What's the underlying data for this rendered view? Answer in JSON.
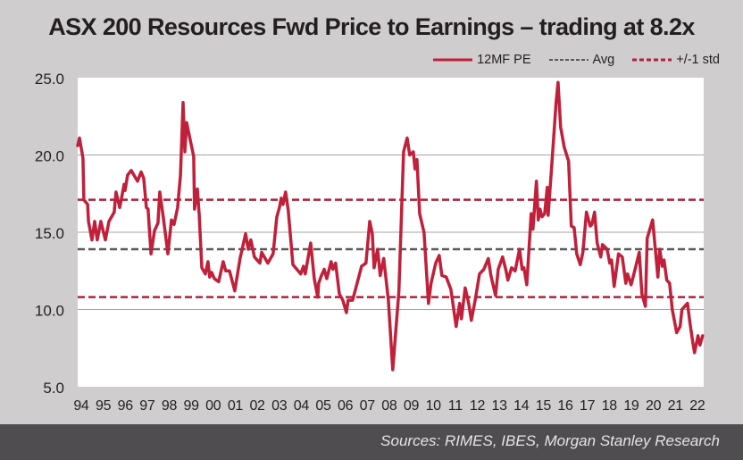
{
  "chart_data": {
    "type": "line",
    "title": "ASX 200 Resources Fwd Price to Earnings – trading at 8.2x",
    "xlabel": "",
    "ylabel": "",
    "xlim": [
      1994.0,
      2022.45
    ],
    "ylim": [
      5,
      25
    ],
    "yticks": [
      5,
      10,
      15,
      20,
      25
    ],
    "ytick_labels": [
      "5.0",
      "10.0",
      "15.0",
      "20.0",
      "25.0"
    ],
    "xtick_labels": [
      "94",
      "95",
      "96",
      "97",
      "98",
      "99",
      "00",
      "01",
      "02",
      "03",
      "04",
      "05",
      "06",
      "07",
      "08",
      "09",
      "10",
      "11",
      "12",
      "13",
      "14",
      "15",
      "16",
      "17",
      "18",
      "19",
      "20",
      "21",
      "22"
    ],
    "grid": "horizontal",
    "legend_position": "top-right",
    "legend": [
      {
        "label": "12MF PE",
        "style": "solid",
        "color": "#c0203a"
      },
      {
        "label": "Avg",
        "style": "dashed",
        "color": "#59595b"
      },
      {
        "label": "+/-1 std",
        "style": "dashed",
        "color": "#b0213a"
      }
    ],
    "reference_lines": {
      "avg": 13.9,
      "upper_std": 17.1,
      "lower_std": 10.8
    },
    "series": [
      {
        "name": "12MF PE",
        "color": "#c0203a",
        "x": [
          1994.0,
          1994.08,
          1994.24,
          1994.28,
          1994.45,
          1994.49,
          1994.65,
          1994.77,
          1994.89,
          1995.05,
          1995.26,
          1995.42,
          1995.66,
          1995.74,
          1995.91,
          1996.11,
          1996.15,
          1996.27,
          1996.43,
          1996.72,
          1996.88,
          1997.0,
          1997.12,
          1997.2,
          1997.33,
          1997.49,
          1997.65,
          1997.73,
          1997.89,
          1998.1,
          1998.26,
          1998.38,
          1998.54,
          1998.67,
          1998.79,
          1998.87,
          1998.95,
          1999.11,
          1999.27,
          1999.31,
          1999.44,
          1999.52,
          1999.64,
          1999.8,
          1999.92,
          2000.0,
          2000.09,
          2000.21,
          2000.41,
          2000.61,
          2000.73,
          2000.9,
          2001.14,
          2001.38,
          2001.63,
          2001.75,
          2001.87,
          2002.03,
          2002.28,
          2002.36,
          2002.64,
          2002.88,
          2003.05,
          2003.17,
          2003.25,
          2003.33,
          2003.45,
          2003.57,
          2003.78,
          2004.14,
          2004.26,
          2004.34,
          2004.59,
          2004.75,
          2004.91,
          2004.95,
          2005.08,
          2005.2,
          2005.32,
          2005.52,
          2005.6,
          2005.72,
          2005.89,
          2006.05,
          2006.21,
          2006.29,
          2006.49,
          2006.7,
          2006.9,
          2007.1,
          2007.27,
          2007.39,
          2007.47,
          2007.63,
          2007.75,
          2007.91,
          2008.12,
          2008.32,
          2008.6,
          2008.81,
          2008.97,
          2009.09,
          2009.25,
          2009.33,
          2009.42,
          2009.54,
          2009.74,
          2009.94,
          2010.06,
          2010.27,
          2010.43,
          2010.55,
          2010.75,
          2010.96,
          2011.2,
          2011.36,
          2011.44,
          2011.61,
          2011.77,
          2011.89,
          2012.09,
          2012.26,
          2012.46,
          2012.66,
          2012.78,
          2012.99,
          2013.11,
          2013.31,
          2013.47,
          2013.55,
          2013.72,
          2013.88,
          2014.08,
          2014.2,
          2014.28,
          2014.41,
          2014.61,
          2014.69,
          2014.85,
          2014.93,
          2015.01,
          2015.1,
          2015.22,
          2015.34,
          2015.38,
          2015.54,
          2015.74,
          2015.83,
          2015.95,
          2016.11,
          2016.31,
          2016.43,
          2016.56,
          2016.68,
          2016.84,
          2016.96,
          2017.12,
          2017.29,
          2017.37,
          2017.49,
          2017.61,
          2017.77,
          2017.85,
          2018.06,
          2018.18,
          2018.26,
          2018.38,
          2018.58,
          2018.75,
          2018.91,
          2018.99,
          2019.15,
          2019.35,
          2019.52,
          2019.64,
          2019.8,
          2019.88,
          2020.13,
          2020.37,
          2020.45,
          2020.57,
          2020.65,
          2020.77,
          2020.9,
          2021.02,
          2021.22,
          2021.38,
          2021.46,
          2021.71,
          2021.83,
          2021.95,
          2022.03,
          2022.19,
          2022.28,
          2022.4
        ],
        "y": [
          20.6,
          21.1,
          19.8,
          17.1,
          16.8,
          15.7,
          14.5,
          15.7,
          14.5,
          15.7,
          14.5,
          15.7,
          16.3,
          17.6,
          16.6,
          18.1,
          17.7,
          18.7,
          19.0,
          18.3,
          18.9,
          18.5,
          16.6,
          16.5,
          13.6,
          15.1,
          15.6,
          17.6,
          16.0,
          13.6,
          15.8,
          15.5,
          16.6,
          18.7,
          23.4,
          20.2,
          22.1,
          21.0,
          19.9,
          16.5,
          17.8,
          16.2,
          12.7,
          12.3,
          13.1,
          12.1,
          12.4,
          12.0,
          11.8,
          13.1,
          12.5,
          12.5,
          11.2,
          13.3,
          14.9,
          13.9,
          14.5,
          13.4,
          13.0,
          13.7,
          13.0,
          13.6,
          16.0,
          16.6,
          17.2,
          16.8,
          17.6,
          16.4,
          12.9,
          12.3,
          12.8,
          12.3,
          14.3,
          12.0,
          10.8,
          11.7,
          12.2,
          12.6,
          12.0,
          13.1,
          12.6,
          13.0,
          11.0,
          10.6,
          9.8,
          10.6,
          10.6,
          11.7,
          12.8,
          13.0,
          15.7,
          14.9,
          12.7,
          13.9,
          12.2,
          13.3,
          10.6,
          6.1,
          11.2,
          20.2,
          21.1,
          20.0,
          20.2,
          19.1,
          19.7,
          16.2,
          15.0,
          10.4,
          11.7,
          13.0,
          13.5,
          12.2,
          12.1,
          11.3,
          8.9,
          10.4,
          9.4,
          11.4,
          10.4,
          9.3,
          10.8,
          12.3,
          12.6,
          13.3,
          12.2,
          10.9,
          12.6,
          13.4,
          12.5,
          11.9,
          12.7,
          12.5,
          13.9,
          12.6,
          12.7,
          11.6,
          16.2,
          15.2,
          18.3,
          15.8,
          16.5,
          16.0,
          16.2,
          17.9,
          16.1,
          19.2,
          23.4,
          24.7,
          21.8,
          20.5,
          19.6,
          15.4,
          15.3,
          13.6,
          12.9,
          13.7,
          16.3,
          15.4,
          15.5,
          16.3,
          14.3,
          13.4,
          14.2,
          13.9,
          13.0,
          13.2,
          11.5,
          13.6,
          13.4,
          11.7,
          12.3,
          11.6,
          12.7,
          13.7,
          11.0,
          10.2,
          14.6,
          15.8,
          12.1,
          13.9,
          12.8,
          13.2,
          11.9,
          11.7,
          10.0,
          8.5,
          8.9,
          10.0,
          10.4,
          9.1,
          7.9,
          7.2,
          8.3,
          7.7,
          8.3
        ]
      }
    ],
    "source": "Sources: RIMES, IBES, Morgan Stanley Research"
  },
  "legend_labels": [
    "12MF PE",
    "Avg",
    "+/-1 std"
  ]
}
